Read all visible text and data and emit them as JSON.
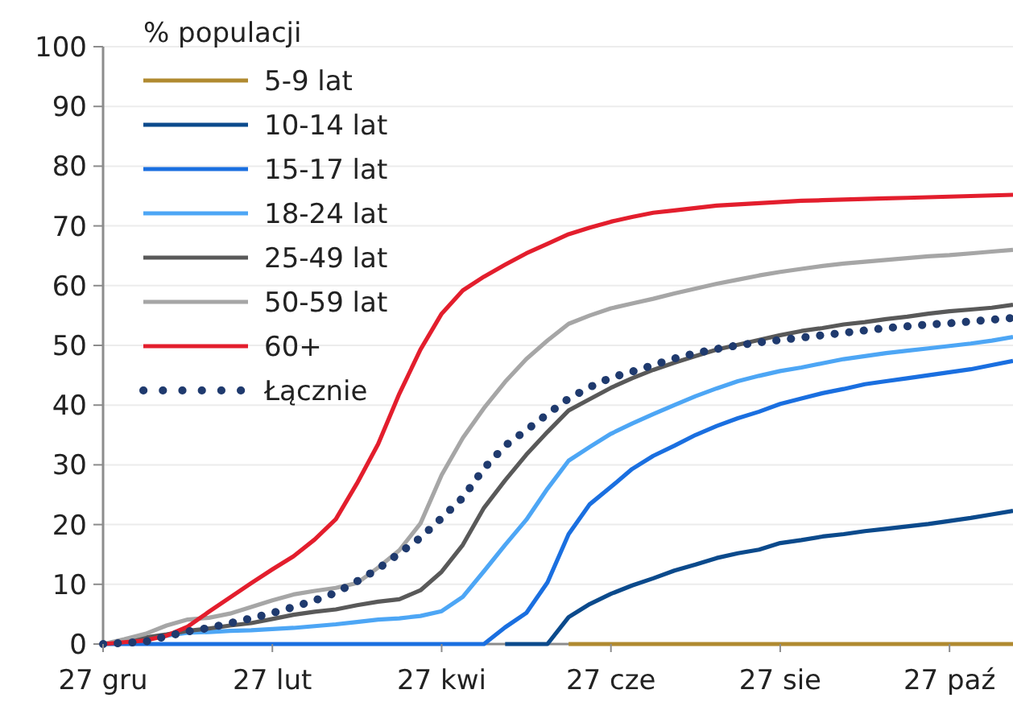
{
  "chart_data": {
    "type": "line",
    "legend_title": "% populacji",
    "legend": "top left",
    "grid": "y",
    "marker": "none",
    "line_style": "solid",
    "categories": [
      "27 gru",
      null,
      null,
      null,
      null,
      null,
      null,
      null,
      "27 lut",
      null,
      null,
      null,
      null,
      null,
      null,
      null,
      "27 kwi",
      null,
      null,
      null,
      null,
      null,
      null,
      null,
      "27 cze",
      null,
      null,
      null,
      null,
      null,
      null,
      null,
      "27 sie",
      null,
      null,
      null,
      null,
      null,
      null,
      null,
      "27 paź",
      null,
      null,
      null
    ],
    "ylim": [
      0,
      100
    ],
    "yticks": [
      0,
      10,
      20,
      30,
      40,
      50,
      60,
      70,
      80,
      90,
      100
    ],
    "series": [
      {
        "name": "5-9 lat",
        "color": "#b08a30",
        "values": [
          null,
          null,
          null,
          null,
          null,
          null,
          null,
          null,
          null,
          null,
          null,
          null,
          null,
          null,
          null,
          null,
          null,
          null,
          null,
          null,
          null,
          null,
          0,
          0,
          0,
          0,
          0,
          0,
          0,
          0,
          0,
          0,
          0,
          0,
          0,
          0,
          0,
          0,
          0,
          0,
          0,
          0,
          0,
          0
        ]
      },
      {
        "name": "10-14 lat",
        "color": "#0b4a8c",
        "values": [
          null,
          null,
          null,
          null,
          null,
          null,
          null,
          null,
          null,
          null,
          null,
          null,
          null,
          null,
          null,
          null,
          null,
          null,
          null,
          0,
          0,
          0,
          4.5,
          6.7,
          8.4,
          9.8,
          11,
          12.3,
          13.3,
          14.4,
          15.2,
          15.8,
          16.9,
          17.4,
          18,
          18.4,
          18.9,
          19.3,
          19.7,
          20.1,
          20.6,
          21.1,
          21.7,
          22.3
        ]
      },
      {
        "name": "15-17 lat",
        "color": "#1a6fe0",
        "values": [
          0,
          0,
          0,
          0,
          0,
          0,
          0,
          0,
          0,
          0,
          0,
          0,
          0,
          0,
          0,
          0,
          0,
          0,
          0,
          2.8,
          5.2,
          10.3,
          18.4,
          23.4,
          26.3,
          29.3,
          31.5,
          33.2,
          35,
          36.5,
          37.8,
          38.9,
          40.2,
          41.1,
          42,
          42.7,
          43.5,
          44,
          44.5,
          45,
          45.5,
          46,
          46.7,
          47.4
        ]
      },
      {
        "name": "18-24 lat",
        "color": "#4da6f5",
        "values": [
          null,
          null,
          0.9,
          1.4,
          1.9,
          2,
          2.2,
          2.3,
          2.5,
          2.7,
          3,
          3.3,
          3.7,
          4.1,
          4.3,
          4.7,
          5.5,
          7.9,
          12.2,
          16.6,
          20.8,
          26,
          30.7,
          33,
          35.2,
          36.9,
          38.5,
          40,
          41.5,
          42.8,
          44,
          44.9,
          45.7,
          46.3,
          47,
          47.7,
          48.2,
          48.7,
          49.1,
          49.5,
          49.9,
          50.3,
          50.8,
          51.4
        ]
      },
      {
        "name": "25-49 lat",
        "color": "#595959",
        "values": [
          0,
          0.5,
          1.1,
          1.6,
          2.2,
          2.6,
          3.1,
          3.5,
          4.2,
          4.9,
          5.4,
          5.8,
          6.5,
          7.1,
          7.5,
          9,
          12.1,
          16.6,
          22.8,
          27.4,
          31.7,
          35.5,
          39.1,
          41,
          42.9,
          44.5,
          45.9,
          47.1,
          48.2,
          49.3,
          50.1,
          50.9,
          51.7,
          52.4,
          52.9,
          53.5,
          53.9,
          54.4,
          54.8,
          55.3,
          55.7,
          56,
          56.3,
          56.8
        ]
      },
      {
        "name": "50-59 lat",
        "color": "#a6a6a6",
        "values": [
          0,
          0.8,
          1.7,
          3.1,
          4.1,
          4.4,
          5.1,
          6.2,
          7.3,
          8.3,
          8.9,
          9.4,
          10.2,
          12.8,
          15.7,
          20.2,
          28.3,
          34.5,
          39.5,
          43.9,
          47.7,
          50.8,
          53.6,
          55,
          56.2,
          57,
          57.8,
          58.7,
          59.5,
          60.3,
          61,
          61.7,
          62.3,
          62.8,
          63.3,
          63.7,
          64,
          64.3,
          64.6,
          64.9,
          65.1,
          65.4,
          65.7,
          66
        ]
      },
      {
        "name": "60+",
        "color": "#e31e2d",
        "values": [
          0,
          0.3,
          0.6,
          1.4,
          2.9,
          5.4,
          7.8,
          10.2,
          12.5,
          14.7,
          17.5,
          20.9,
          26.9,
          33.5,
          41.9,
          49.3,
          55.3,
          59.2,
          61.5,
          63.5,
          65.4,
          67,
          68.6,
          69.7,
          70.7,
          71.5,
          72.2,
          72.6,
          73,
          73.4,
          73.6,
          73.8,
          74,
          74.2,
          74.3,
          74.4,
          74.5,
          74.6,
          74.7,
          74.8,
          74.9,
          75,
          75.1,
          75.2
        ]
      },
      {
        "name": "Łącznie",
        "color": "#1f3a6e",
        "line_style": "dotted",
        "values": [
          0,
          0.2,
          0.4,
          1.3,
          2.1,
          2.7,
          3.5,
          4.3,
          5.2,
          6.2,
          7.3,
          8.6,
          10.5,
          12.6,
          15.2,
          17.8,
          21.1,
          24.5,
          29.4,
          33.2,
          35.8,
          38.5,
          41.1,
          43,
          44.6,
          45.6,
          46.7,
          47.8,
          48.7,
          49.4,
          50,
          50.5,
          50.9,
          51.3,
          51.7,
          52.1,
          52.5,
          52.9,
          53.2,
          53.5,
          53.7,
          54,
          54.3,
          54.6
        ]
      }
    ]
  }
}
